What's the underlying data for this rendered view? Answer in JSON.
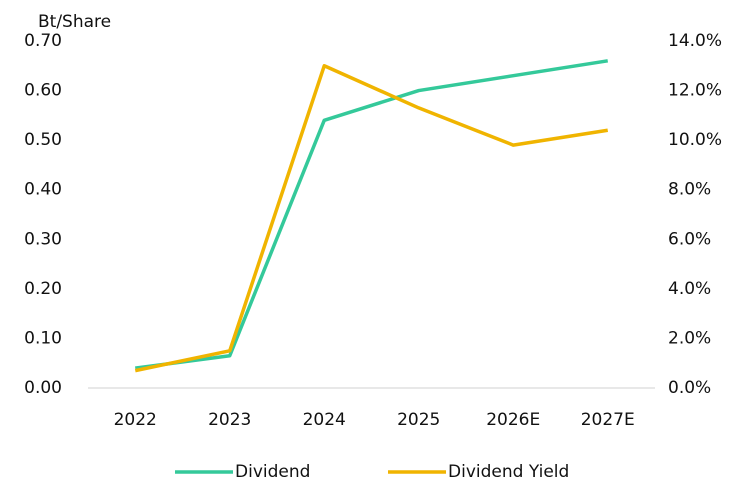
{
  "chart_data": {
    "type": "line",
    "y_axis_label": "Bt/Share",
    "categories": [
      "2022",
      "2023",
      "2024",
      "2025",
      "2026E",
      "2027E"
    ],
    "series": [
      {
        "name": "Dividend",
        "color": "#34c99a",
        "values": [
          0.04,
          0.065,
          0.54,
          0.6,
          0.63,
          0.66
        ]
      },
      {
        "name": "Dividend Yield",
        "color": "#f0b400",
        "axis": "y2",
        "values": [
          0.7,
          1.5,
          13.0,
          11.3,
          9.8,
          10.4
        ]
      }
    ],
    "ylim": [
      0,
      0.7
    ],
    "yticks": [
      {
        "value": 0,
        "label": "0.00"
      },
      {
        "value": 0.1,
        "label": "0.10"
      },
      {
        "value": 0.2,
        "label": "0.20"
      },
      {
        "value": 0.3,
        "label": "0.30"
      },
      {
        "value": 0.4,
        "label": "0.40"
      },
      {
        "value": 0.5,
        "label": "0.50"
      },
      {
        "value": 0.6,
        "label": "0.60"
      },
      {
        "value": 0.7,
        "label": "0.70"
      }
    ],
    "y2lim": [
      0,
      14
    ],
    "y2ticks": [
      {
        "value": 0,
        "label": "0.0%"
      },
      {
        "value": 2,
        "label": "2.0%"
      },
      {
        "value": 4,
        "label": "4.0%"
      },
      {
        "value": 6,
        "label": "6.0%"
      },
      {
        "value": 8,
        "label": "8.0%"
      },
      {
        "value": 10,
        "label": "10.0%"
      },
      {
        "value": 12,
        "label": "12.0%"
      },
      {
        "value": 14,
        "label": "14.0%"
      }
    ],
    "legend": "bottom"
  }
}
